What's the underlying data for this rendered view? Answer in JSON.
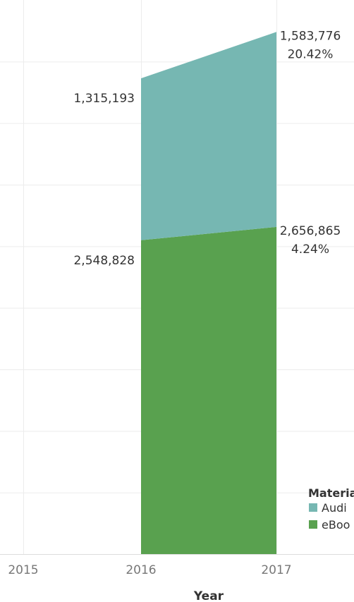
{
  "chart_data": {
    "type": "area",
    "stacked": true,
    "xlabel": "Year",
    "ylabel": "",
    "x_ticks": [
      "2015",
      "2016",
      "2017"
    ],
    "categories": [
      "2016",
      "2017"
    ],
    "ylim": [
      0,
      4500000
    ],
    "grid": true,
    "legend_position": "bottom-right",
    "legend_title": "Materia",
    "series": [
      {
        "name": "eBoo",
        "color": "#59a14f",
        "values": [
          2548828,
          2656865
        ],
        "value_labels": [
          "2,548,828",
          "2,656,865"
        ],
        "change_labels": [
          "",
          "4.24%"
        ]
      },
      {
        "name": "Audi",
        "color": "#76b7b2",
        "values": [
          1315193,
          1583776
        ],
        "value_labels": [
          "1,315,193",
          "1,583,776"
        ],
        "change_labels": [
          "",
          "20.42%"
        ]
      }
    ]
  }
}
